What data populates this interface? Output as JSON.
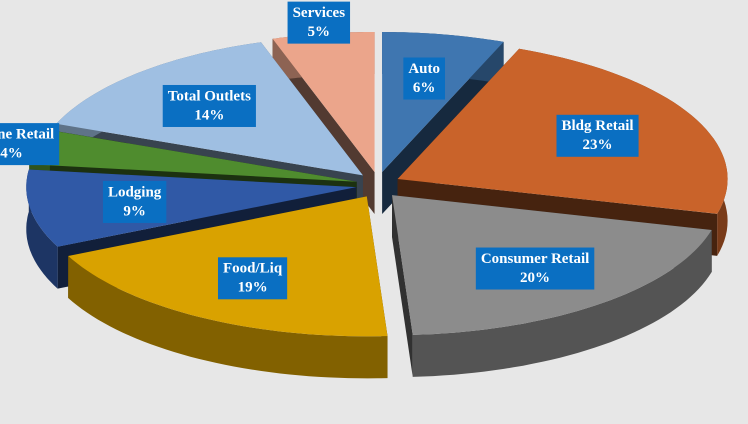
{
  "chart_data": {
    "type": "pie3d",
    "categories": [
      "Auto",
      "Bldg Retail",
      "Consumer Retail",
      "Food/Liq",
      "Lodging",
      "Online Retail",
      "Total Outlets",
      "Services"
    ],
    "values": [
      6,
      23,
      20,
      19,
      9,
      4,
      14,
      5
    ],
    "value_labels": [
      "6%",
      "23%",
      "20%",
      "19%",
      "9%",
      "4%",
      "14%",
      "5%"
    ],
    "colors": [
      "#3f76b0",
      "#c9632a",
      "#8c8c8c",
      "#d9a200",
      "#3059a6",
      "#4f8c2e",
      "#9fbfe2",
      "#eba58b"
    ]
  }
}
